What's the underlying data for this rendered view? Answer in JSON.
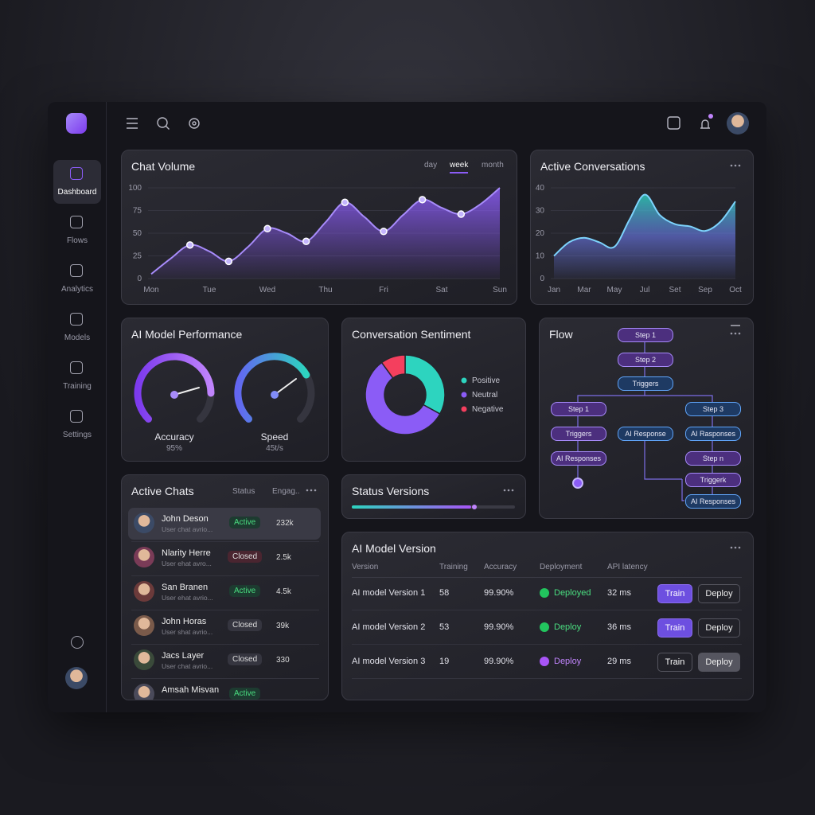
{
  "sidebar": {
    "items": [
      "Dashboard",
      "Flows",
      "Analytics",
      "Models",
      "Training",
      "Settings"
    ]
  },
  "chart_data": [
    {
      "type": "area",
      "title": "Chat Volume",
      "options": [
        "day",
        "week",
        "month"
      ],
      "categories": [
        "Mon",
        null,
        null,
        "Tue",
        null,
        null,
        "Wed",
        null,
        null,
        "Thu",
        null,
        null,
        "Fri",
        null,
        null,
        "Sat",
        null,
        null,
        "Sun"
      ],
      "values": [
        5,
        22,
        37,
        30,
        19,
        35,
        55,
        50,
        41,
        62,
        84,
        68,
        52,
        70,
        87,
        78,
        71,
        82,
        100
      ],
      "color": "#8b5cf6",
      "ylim": [
        0,
        100
      ],
      "yticks": [
        0,
        25,
        50,
        75,
        100
      ],
      "grid": true
    },
    {
      "type": "area",
      "title": "Active Conversations",
      "categories": [
        "Jan",
        null,
        "Mar",
        null,
        "May",
        null,
        "Jul",
        null,
        "Set",
        null,
        "Sep",
        null,
        "Oct"
      ],
      "values": [
        10,
        16,
        18,
        16,
        14,
        26,
        37,
        28,
        24,
        23,
        21,
        25,
        34
      ],
      "color": "#6d7bf0",
      "ylim": [
        0,
        40
      ],
      "yticks": [
        0,
        10,
        20,
        30,
        40
      ],
      "grid": true
    },
    {
      "type": "pie",
      "title": "Conversation Sentiment",
      "categories": [
        "Positive",
        "Neutral",
        "Negative"
      ],
      "values": [
        33,
        57,
        10
      ],
      "colors": [
        "#2dd4bf",
        "#8b5cf6",
        "#f43f5e"
      ]
    }
  ],
  "performance": {
    "title": "AI Model Performance",
    "gauges": [
      {
        "label": "Accuracy",
        "value": "95%"
      },
      {
        "label": "Speed",
        "value": "45t/s"
      }
    ]
  },
  "status_versions": {
    "title": "Status Versions"
  },
  "flow": {
    "title": "Flow",
    "nodes": [
      "Step 1",
      "Step 2",
      "Triggers",
      "Step 1",
      "Step 3",
      "Triggers",
      "AI Response",
      "AI Rasponses",
      "AI Responses",
      "Step n",
      "Triggerk",
      "AI Responses"
    ]
  },
  "active_chats": {
    "title": "Active Chats",
    "columns": [
      "Status",
      "Engag.."
    ],
    "rows": [
      {
        "name": "John Deson",
        "message": "User chat avrio...",
        "status": "Active",
        "engagement": "232k"
      },
      {
        "name": "Nlarity Herre",
        "message": "User ehat avro...",
        "status": "Closed",
        "engagement": "2.5k"
      },
      {
        "name": "San Branen",
        "message": "User ehat avrio...",
        "status": "Active",
        "engagement": "4.5k"
      },
      {
        "name": "John Horas",
        "message": "User shat avrio...",
        "status": "Closed",
        "engagement": "39k"
      },
      {
        "name": "Jacs Layer",
        "message": "User chat avrio...",
        "status": "Closed",
        "engagement": "330"
      },
      {
        "name": "Amsah Misvan",
        "message": "",
        "status": "Active",
        "engagement": ""
      }
    ]
  },
  "model_versions": {
    "title": "AI Model Version",
    "columns": [
      "Version",
      "Training",
      "Accuracy",
      "Deployment",
      "API latency"
    ],
    "actions": [
      "Train",
      "Deploy"
    ],
    "rows": [
      [
        "AI model Version 1",
        58,
        "99.90%",
        "Deployed",
        "32 ms"
      ],
      [
        "AI model Version 2",
        53,
        "99.90%",
        "Deploy",
        "36 ms"
      ],
      [
        "AI model Version 3",
        19,
        "99.90%",
        "Deploy",
        "29 ms"
      ]
    ]
  }
}
